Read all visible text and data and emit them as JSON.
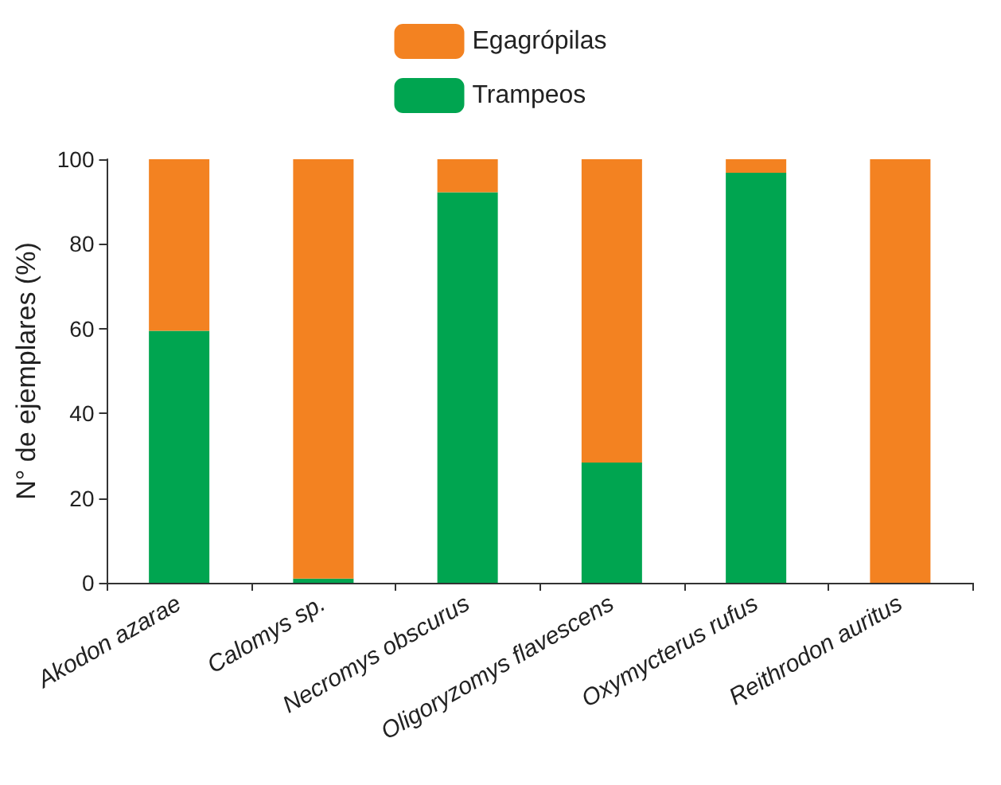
{
  "chart_data": {
    "type": "bar",
    "stacked": true,
    "ylabel": "N° de ejemplares (%)",
    "categories": [
      "Akodon azarae",
      "Calomys sp.",
      "Necromys obscurus",
      "Oligoryzomys flavescens",
      "Oxymycterus rufus",
      "Reithrodon auritus"
    ],
    "series": [
      {
        "name": "Trampeos",
        "color": "#00a550",
        "values": [
          59.5,
          1,
          92.2,
          28.4,
          96.8,
          0
        ]
      },
      {
        "name": "Egagrópilas",
        "color": "#f38221",
        "values": [
          40.5,
          99,
          7.8,
          71.6,
          3.2,
          100
        ]
      }
    ],
    "ylim": [
      0,
      100
    ],
    "yticks": [
      0,
      20,
      40,
      60,
      80,
      100
    ],
    "grid": false,
    "legend": "top"
  }
}
